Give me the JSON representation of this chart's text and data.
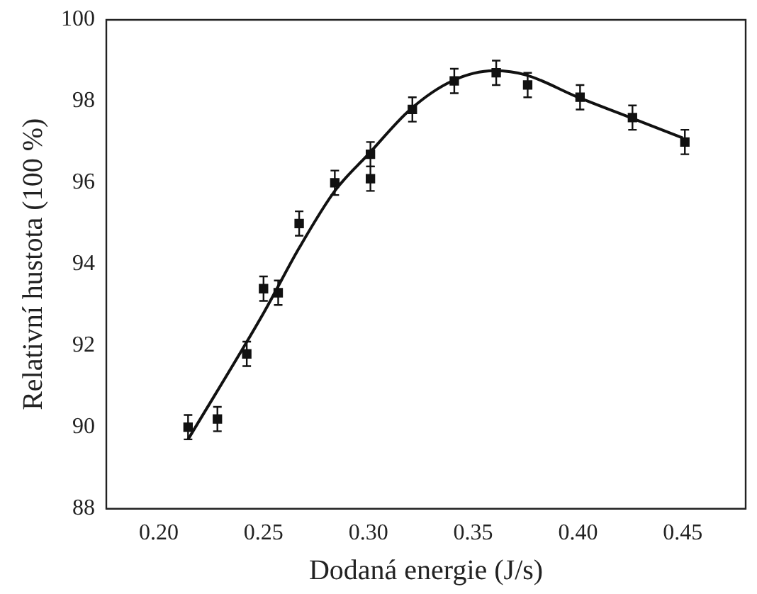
{
  "chart_data": {
    "type": "scatter",
    "xlabel": "Dodaná energie (J/s)",
    "ylabel": "Relativní hustota (100 %)",
    "xlim": [
      0.175,
      0.48
    ],
    "xticks": [
      {
        "value": 0.2,
        "label": "0.20"
      },
      {
        "value": 0.25,
        "label": "0.25"
      },
      {
        "value": 0.3,
        "label": "0.30"
      },
      {
        "value": 0.35,
        "label": "0.35"
      },
      {
        "value": 0.4,
        "label": "0.40"
      },
      {
        "value": 0.45,
        "label": "0.45"
      }
    ],
    "ylim": [
      88,
      100
    ],
    "yticks": [
      88,
      90,
      92,
      94,
      96,
      98,
      100
    ],
    "grid": false,
    "legend": false,
    "marker": "square",
    "series": [
      {
        "color": "#111111",
        "x": [
          0.214,
          0.228,
          0.242,
          0.25,
          0.257,
          0.267,
          0.284,
          0.301,
          0.301,
          0.321,
          0.341,
          0.361,
          0.376,
          0.401,
          0.426,
          0.451
        ],
        "values": [
          90.0,
          90.2,
          91.8,
          93.4,
          93.3,
          95.0,
          96.0,
          96.7,
          96.1,
          97.8,
          98.5,
          98.7,
          98.4,
          98.1,
          97.6,
          97.0
        ],
        "errors": [
          0.3,
          0.3,
          0.3,
          0.3,
          0.3,
          0.3,
          0.3,
          0.3,
          0.3,
          0.3,
          0.3,
          0.3,
          0.3,
          0.3,
          0.3,
          0.3
        ]
      },
      {
        "type": "line",
        "color": "#111111",
        "marker": "none",
        "line_style": "solid",
        "x": [
          0.214,
          0.25,
          0.267,
          0.284,
          0.3,
          0.32,
          0.34,
          0.36,
          0.375,
          0.4,
          0.425,
          0.45
        ],
        "values": [
          89.7,
          92.8,
          94.4,
          95.8,
          96.7,
          97.8,
          98.5,
          98.75,
          98.65,
          98.1,
          97.6,
          97.1
        ]
      }
    ]
  }
}
